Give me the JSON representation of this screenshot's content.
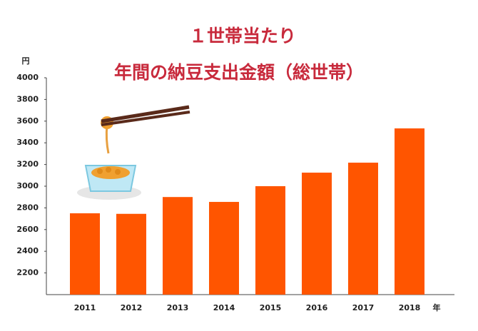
{
  "chart_data": {
    "type": "bar",
    "title_lines": [
      "１世帯当たり",
      "年間の納豆支出金額（総世帯）"
    ],
    "y_unit": "円",
    "x_unit": "年",
    "categories": [
      "2011",
      "2012",
      "2013",
      "2014",
      "2015",
      "2016",
      "2017",
      "2018"
    ],
    "values": [
      2750,
      2745,
      2900,
      2855,
      3000,
      3125,
      3217,
      3533
    ],
    "color": "#ff5500",
    "ylim": [
      2000,
      4000
    ],
    "yticks": [
      2200,
      2400,
      2600,
      2800,
      3000,
      3200,
      3400,
      3600,
      3800,
      4000
    ]
  }
}
